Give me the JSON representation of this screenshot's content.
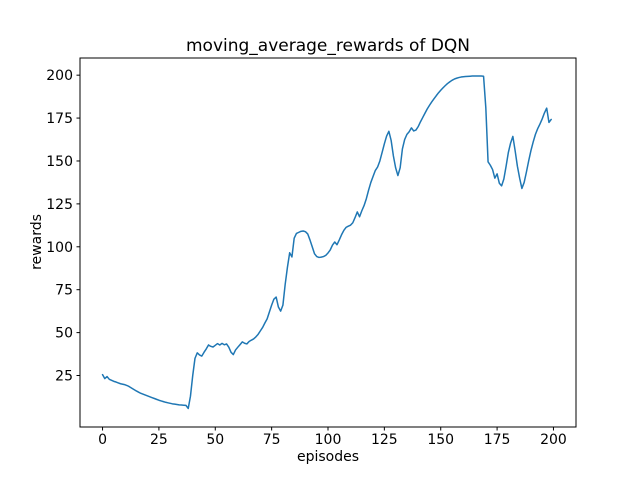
{
  "figure": {
    "background": "#ffffff",
    "spine_color": "#000000",
    "tick_label_color": "#000000"
  },
  "chart_data": {
    "type": "line",
    "title": "moving_average_rewards of DQN",
    "xlabel": "episodes",
    "ylabel": "rewards",
    "grid": false,
    "legend": "none",
    "xlim": [
      -10,
      210
    ],
    "ylim": [
      -5,
      210
    ],
    "xticks": [
      0,
      25,
      50,
      75,
      100,
      125,
      150,
      175,
      200
    ],
    "yticks": [
      25,
      50,
      75,
      100,
      125,
      150,
      175,
      200
    ],
    "series": [
      {
        "name": "moving_average_rewards",
        "color": "#1f77b4",
        "line_width": 1.5,
        "x_start": 0,
        "x_step": 1,
        "y": [
          25.5,
          23.2,
          24.4,
          22.8,
          22.2,
          21.6,
          21.2,
          20.7,
          20.2,
          19.9,
          19.6,
          19.1,
          18.4,
          17.6,
          16.8,
          16.0,
          15.3,
          14.6,
          14.1,
          13.6,
          13.1,
          12.6,
          12.1,
          11.6,
          11.1,
          10.6,
          10.2,
          9.8,
          9.4,
          9.1,
          8.8,
          8.5,
          8.3,
          8.1,
          7.9,
          7.8,
          7.7,
          7.6,
          5.8,
          13.0,
          25.0,
          35.0,
          38.2,
          37.0,
          36.3,
          38.5,
          40.5,
          42.8,
          42.0,
          41.6,
          42.6,
          43.6,
          42.8,
          43.7,
          42.9,
          43.4,
          41.5,
          38.5,
          37.2,
          39.9,
          41.5,
          43.0,
          44.6,
          43.8,
          43.4,
          44.8,
          45.6,
          46.3,
          47.5,
          49.0,
          51.0,
          53.0,
          55.6,
          58.0,
          62.0,
          66.0,
          69.5,
          70.7,
          64.9,
          62.5,
          66.0,
          78.0,
          88.0,
          96.5,
          94.1,
          105.0,
          107.8,
          108.4,
          109.0,
          109.2,
          108.8,
          107.5,
          104.0,
          100.0,
          96.0,
          94.3,
          93.8,
          94.0,
          94.3,
          95.0,
          96.4,
          98.2,
          101.0,
          102.8,
          101.2,
          104.0,
          107.0,
          109.5,
          111.3,
          112.0,
          112.6,
          114.0,
          117.0,
          120.3,
          117.5,
          121.0,
          124.0,
          128.0,
          133.0,
          137.5,
          141.0,
          144.5,
          146.5,
          150.0,
          155.0,
          160.0,
          164.5,
          167.3,
          162.0,
          153.0,
          146.0,
          141.5,
          146.0,
          157.0,
          162.5,
          165.5,
          167.0,
          169.3,
          167.5,
          168.0,
          170.0,
          172.8,
          175.3,
          177.8,
          180.3,
          182.4,
          184.4,
          186.2,
          188.0,
          189.7,
          191.2,
          192.6,
          193.9,
          195.1,
          196.1,
          197.0,
          197.7,
          198.2,
          198.6,
          198.9,
          199.1,
          199.2,
          199.3,
          199.4,
          199.5,
          199.5,
          199.5,
          199.5,
          199.5,
          199.4,
          181.0,
          149.5,
          147.5,
          145.0,
          140.0,
          142.5,
          137.0,
          135.5,
          139.5,
          147.0,
          155.0,
          160.5,
          164.3,
          156.0,
          147.0,
          140.0,
          134.0,
          137.5,
          143.5,
          150.0,
          156.0,
          161.0,
          165.5,
          168.8,
          171.5,
          174.5,
          178.0,
          180.8,
          172.5,
          174.2
        ]
      }
    ]
  }
}
